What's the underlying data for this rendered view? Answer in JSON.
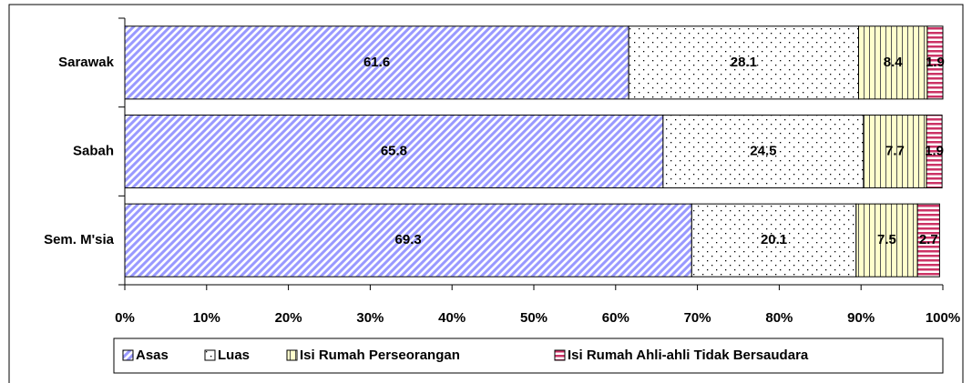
{
  "chart_data": {
    "type": "stacked_barh",
    "categories": [
      "Sarawak",
      "Sabah",
      "Sem. M'sia"
    ],
    "series": [
      {
        "name": "Asas",
        "color": "#9999ff",
        "values": [
          61.6,
          65.8,
          69.3
        ]
      },
      {
        "name": "Luas",
        "color": "#ffffff",
        "values": [
          28.1,
          24.5,
          20.1
        ]
      },
      {
        "name": "Isi Rumah Perseorangan",
        "color": "#ffffcc",
        "values": [
          8.4,
          7.7,
          7.5
        ]
      },
      {
        "name": "Isi Rumah Ahli-ahli Tidak Bersaudara",
        "color": "#cc3366",
        "values": [
          1.9,
          1.9,
          2.7
        ]
      }
    ],
    "xlim": [
      0,
      100
    ],
    "xticks": [
      {
        "value": 0,
        "label": "0%"
      },
      {
        "value": 10,
        "label": "10%"
      },
      {
        "value": 20,
        "label": "20%"
      },
      {
        "value": 30,
        "label": "30%"
      },
      {
        "value": 40,
        "label": "40%"
      },
      {
        "value": 50,
        "label": "50%"
      },
      {
        "value": 60,
        "label": "60%"
      },
      {
        "value": 70,
        "label": "70%"
      },
      {
        "value": 80,
        "label": "80%"
      },
      {
        "value": 90,
        "label": "90%"
      },
      {
        "value": 100,
        "label": "100%"
      }
    ],
    "legend": "bottom"
  }
}
